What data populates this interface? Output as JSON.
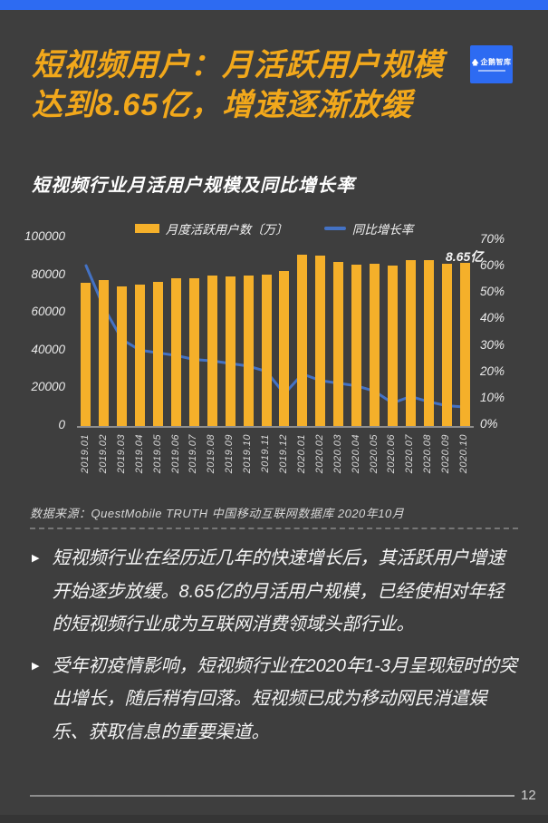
{
  "colors": {
    "background": "#3E3E3E",
    "top_bar_blue": "#2D6BF2",
    "title_yellow": "#F2A81B",
    "bar_yellow": "#F5B02A",
    "line_blue": "#4472C4",
    "logo_blue": "#2D6BF2"
  },
  "header": {
    "title_line1": "短视频用户：月活跃用户规模",
    "title_line2": "达到8.65亿，增速逐渐放缓",
    "logo_text": "企鹅智库"
  },
  "chart": {
    "title": "短视频行业月活用户规模及同比增长率",
    "legend": [
      {
        "label": "月度活跃用户数〔万〕"
      },
      {
        "label": "同比增长率"
      }
    ],
    "annotation": "8.65亿",
    "source": "数据来源：QuestMobile TRUTH 中国移动互联网数据库 2020年10月"
  },
  "chart_data": {
    "type": "bar+line combo",
    "title": "短视频行业月活用户规模及同比增长率",
    "categories": [
      "2019.01",
      "2019.02",
      "2019.03",
      "2019.04",
      "2019.05",
      "2019.06",
      "2019.07",
      "2019.08",
      "2019.09",
      "2019.10",
      "2019.11",
      "2019.12",
      "2020.01",
      "2020.02",
      "2020.03",
      "2020.04",
      "2020.05",
      "2020.06",
      "2020.07",
      "2020.08",
      "2020.09",
      "2020.10"
    ],
    "series": [
      {
        "name": "月度活跃用户数〔万〕",
        "type": "bar",
        "axis": "left",
        "values": [
          76000,
          77500,
          74000,
          75000,
          76500,
          78500,
          78500,
          80000,
          79500,
          80000,
          80500,
          82000,
          91000,
          90500,
          87000,
          85500,
          86000,
          85000,
          88000,
          88000,
          86000,
          86500
        ]
      },
      {
        "name": "同比增长率",
        "type": "line",
        "axis": "right",
        "values": [
          60,
          44,
          32,
          28,
          27,
          26,
          24.5,
          24,
          23,
          22,
          20,
          11.5,
          19,
          16.5,
          15.5,
          14.5,
          12.5,
          8,
          10.5,
          8.5,
          7,
          6.5
        ]
      }
    ],
    "left_axis": {
      "min": 0,
      "max": 100000,
      "ticks": [
        "100000",
        "80000",
        "60000",
        "40000",
        "20000",
        "0"
      ]
    },
    "right_axis": {
      "min": 0,
      "max": 70,
      "unit": "%",
      "ticks": [
        "70%",
        "60%",
        "50%",
        "40%",
        "30%",
        "20%",
        "10%",
        "0%"
      ]
    },
    "annotation": {
      "text": "8.65亿",
      "target_category": "2020.10"
    },
    "grid": false,
    "legend_position": "top"
  },
  "bullets": [
    "短视频行业在经历近几年的快速增长后，其活跃用户增速开始逐步放缓。8.65亿的月活用户规模，已经使相对年轻的短视频行业成为互联网消费领域头部行业。",
    "受年初疫情影响，短视频行业在2020年1-3月呈现短时的突出增长，随后稍有回落。短视频已成为移动网民消遣娱乐、获取信息的重要渠道。"
  ],
  "footer": {
    "page_number": "12"
  }
}
